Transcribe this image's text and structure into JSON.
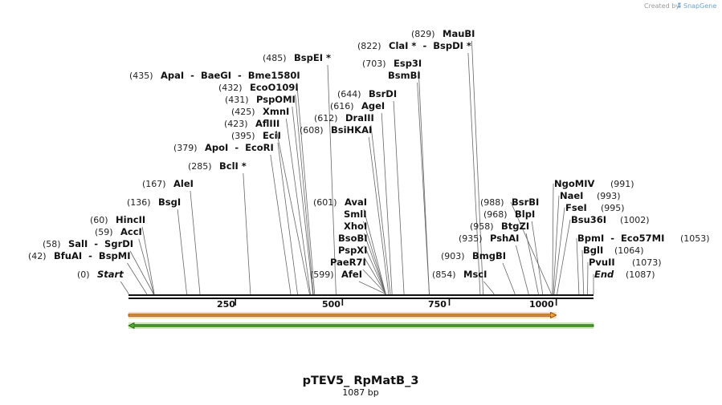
{
  "branding": {
    "created_by": "Created by",
    "app_name": "SnapGene"
  },
  "plasmid": {
    "name": "pTEV5_ RpMatB_3",
    "length_label": "1087 bp",
    "total_bp": 1087
  },
  "ruler": {
    "ticks": [
      {
        "bp": 250,
        "label": "250"
      },
      {
        "bp": 500,
        "label": "500"
      },
      {
        "bp": 750,
        "label": "750"
      },
      {
        "bp": 1000,
        "label": "1000"
      }
    ]
  },
  "features": [
    {
      "name": "forward-feature-arrow",
      "direction": "forward",
      "start_bp": 0,
      "end_bp": 1000,
      "fill": "#f4a13b",
      "stroke": "#7a3b00",
      "glow": "#f7dcae"
    },
    {
      "name": "reverse-feature-arrow",
      "direction": "reverse",
      "start_bp": 0,
      "end_bp": 1087,
      "fill": "#4caa2e",
      "stroke": "#1d5a0f",
      "glow": "#cdebb4"
    }
  ],
  "site_labels": [
    {
      "pos": "(0)",
      "name": "Start",
      "site_bp": 0,
      "italic": true
    },
    {
      "pos": "(42)",
      "name": "BfuAI  -  BspMI",
      "site_bp": 42
    },
    {
      "pos": "(58)",
      "name": "SalI  -  SgrDI",
      "site_bp": 58
    },
    {
      "pos": "(59)",
      "name": "AccI",
      "site_bp": 59
    },
    {
      "pos": "(60)",
      "name": "HincII",
      "site_bp": 60
    },
    {
      "pos": "(136)",
      "name": "BsgI",
      "site_bp": 136
    },
    {
      "pos": "(167)",
      "name": "AleI",
      "site_bp": 167
    },
    {
      "pos": "(285)",
      "name": "BclI *",
      "site_bp": 285
    },
    {
      "pos": "(379)",
      "name": "ApoI  -  EcoRI",
      "site_bp": 379
    },
    {
      "pos": "(395)",
      "name": "EciI",
      "site_bp": 395
    },
    {
      "pos": "(423)",
      "name": "AflIII",
      "site_bp": 423
    },
    {
      "pos": "(425)",
      "name": "XmnI",
      "site_bp": 425
    },
    {
      "pos": "(431)",
      "name": "PspOMI",
      "site_bp": 431
    },
    {
      "pos": "(432)",
      "name": "EcoO109I",
      "site_bp": 432
    },
    {
      "pos": "(435)",
      "name": "ApaI  -  BaeGI  -  Bme1580I",
      "site_bp": 435
    },
    {
      "pos": "(485)",
      "name": "BspEI *",
      "site_bp": 485
    },
    {
      "pos": "(599)",
      "name": "AfeI",
      "site_bp": 599
    },
    {
      "pos": "",
      "name": "PaeR7I",
      "site_bp": 601
    },
    {
      "pos": "",
      "name": "PspXI",
      "site_bp": 601
    },
    {
      "pos": "",
      "name": "BsoBI",
      "site_bp": 601
    },
    {
      "pos": "",
      "name": "XhoI",
      "site_bp": 601
    },
    {
      "pos": "",
      "name": "SmlI",
      "site_bp": 601
    },
    {
      "pos": "(601)",
      "name": "AvaI",
      "site_bp": 601
    },
    {
      "pos": "(608)",
      "name": "BsiHKAI",
      "site_bp": 608
    },
    {
      "pos": "(612)",
      "name": "DraIII",
      "site_bp": 612
    },
    {
      "pos": "(616)",
      "name": "AgeI",
      "site_bp": 616
    },
    {
      "pos": "(644)",
      "name": "BsrDI",
      "site_bp": 644
    },
    {
      "pos": "",
      "name": "BsmBI",
      "site_bp": 703
    },
    {
      "pos": "(703)",
      "name": "Esp3I",
      "site_bp": 703
    },
    {
      "pos": "(822)",
      "name": "ClaI *  -  BspDI *",
      "site_bp": 822
    },
    {
      "pos": "(829)",
      "name": "MauBI",
      "site_bp": 829
    },
    {
      "pos": "(854)",
      "name": "MscI",
      "site_bp": 854
    },
    {
      "pos": "(903)",
      "name": "BmgBI",
      "site_bp": 903
    },
    {
      "pos": "(935)",
      "name": "PshAI",
      "site_bp": 935
    },
    {
      "pos": "(958)",
      "name": "BtgZI",
      "site_bp": 958
    },
    {
      "pos": "(968)",
      "name": "BlpI",
      "site_bp": 968
    },
    {
      "pos": "(988)",
      "name": "BsrBI",
      "site_bp": 988
    },
    {
      "pos": "(991)",
      "name": "NgoMIV",
      "site_bp": 991
    },
    {
      "pos": "(993)",
      "name": "NaeI",
      "site_bp": 993
    },
    {
      "pos": "(995)",
      "name": "FseI",
      "site_bp": 995
    },
    {
      "pos": "(1002)",
      "name": "Bsu36I",
      "site_bp": 1002
    },
    {
      "pos": "(1053)",
      "name": "BpmI  -  Eco57MI",
      "site_bp": 1053
    },
    {
      "pos": "(1064)",
      "name": "BglI",
      "site_bp": 1064
    },
    {
      "pos": "(1073)",
      "name": "PvuII",
      "site_bp": 1073
    },
    {
      "pos": "(1087)",
      "name": "End",
      "site_bp": 1087,
      "italic": true
    }
  ]
}
